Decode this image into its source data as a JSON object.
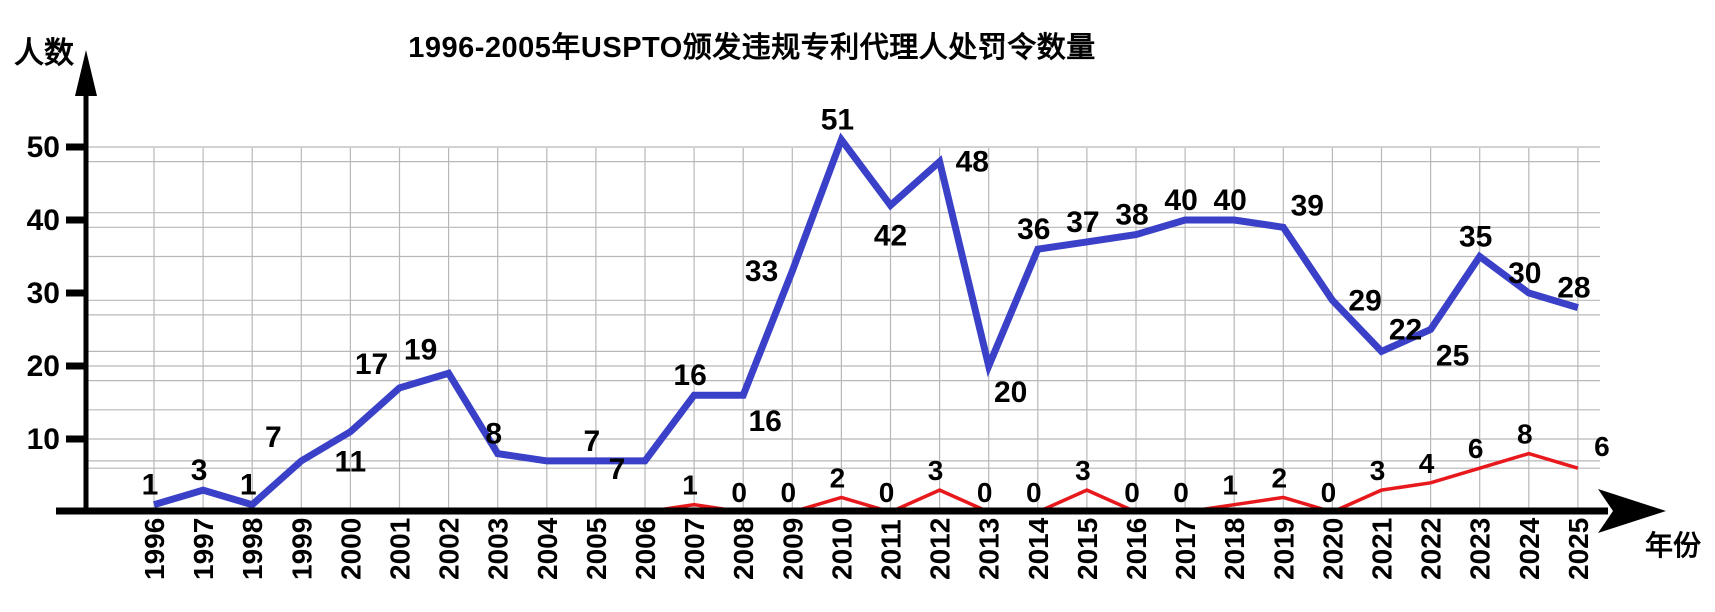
{
  "title": "1996-2005年USPTO颁发违规专利代理人处罚令数量",
  "y_axis_label": "人数",
  "x_axis_label": "年份",
  "y_ticks": [
    10,
    20,
    30,
    40,
    50
  ],
  "colors": {
    "main_line": "#3a41c8",
    "secondary_line": "#e8191c",
    "grid": "#b8b8b8",
    "axis": "#000000",
    "label_text": "#000000",
    "background": "#ffffff"
  },
  "chart_data": {
    "type": "line",
    "title": "1996-2005年USPTO颁发违规专利代理人处罚令数量",
    "xlabel": "年份",
    "ylabel": "人数",
    "categories": [
      "1996",
      "1997",
      "1998",
      "1999",
      "2000",
      "2001",
      "2002",
      "2003",
      "2004",
      "2005",
      "2006",
      "2007",
      "2008",
      "2009",
      "2010",
      "2011",
      "2012",
      "2013",
      "2014",
      "2015",
      "2016",
      "2017",
      "2018",
      "2019",
      "2020",
      "2021",
      "2022",
      "2023",
      "2024",
      "2025"
    ],
    "series": [
      {
        "name": "main-line",
        "color": "#3a41c8",
        "stroke_width": 7,
        "start_index": 0,
        "values": [
          1,
          3,
          1,
          7,
          11,
          17,
          19,
          8,
          7,
          7,
          7,
          16,
          16,
          33,
          51,
          42,
          48,
          20,
          36,
          37,
          38,
          40,
          40,
          39,
          29,
          22,
          25,
          35,
          30,
          28
        ],
        "labels": [
          "1",
          "3",
          "1",
          "7",
          "11",
          "17",
          "19",
          "8",
          "",
          "7",
          "7",
          "16",
          "16",
          "33",
          "51",
          "42",
          "48",
          "20",
          "36",
          "37",
          "38",
          "40",
          "40",
          "39",
          "29",
          "22",
          "25",
          "35",
          "30",
          "28"
        ],
        "label_pos": [
          "a",
          "a",
          "a",
          "al",
          "b",
          "al",
          "al",
          "a",
          "",
          "a",
          "bl",
          "a",
          "br",
          "l",
          "a",
          "b",
          "r",
          "br",
          "a",
          "a",
          "a",
          "a",
          "a",
          "ar",
          "r",
          "ar",
          "br",
          "a",
          "a",
          "a"
        ],
        "label_font_size": 30
      },
      {
        "name": "secondary-line",
        "color": "#e8191c",
        "stroke_width": 3.5,
        "start_index": 10,
        "values": [
          0,
          1,
          0,
          0,
          2,
          0,
          3,
          0,
          0,
          3,
          0,
          0,
          1,
          2,
          0,
          3,
          4,
          6,
          8,
          6
        ],
        "labels": [
          "",
          "1",
          "0",
          "0",
          "2",
          "0",
          "3",
          "0",
          "0",
          "3",
          "0",
          "0",
          "1",
          "2",
          "0",
          "3",
          "4",
          "6",
          "8",
          "6"
        ],
        "label_pos": [
          "",
          "a",
          "a",
          "a",
          "a",
          "a",
          "a",
          "a",
          "a",
          "a",
          "a",
          "a",
          "a",
          "a",
          "a",
          "a",
          "a",
          "a",
          "a",
          "ar"
        ],
        "label_font_size": 28
      }
    ],
    "ylim": [
      0,
      56
    ],
    "grid": true,
    "gridlines_y": [
      6,
      7,
      10,
      14,
      18,
      20,
      22,
      27,
      29,
      35,
      39,
      41,
      48,
      50
    ],
    "legend_position": "none"
  }
}
